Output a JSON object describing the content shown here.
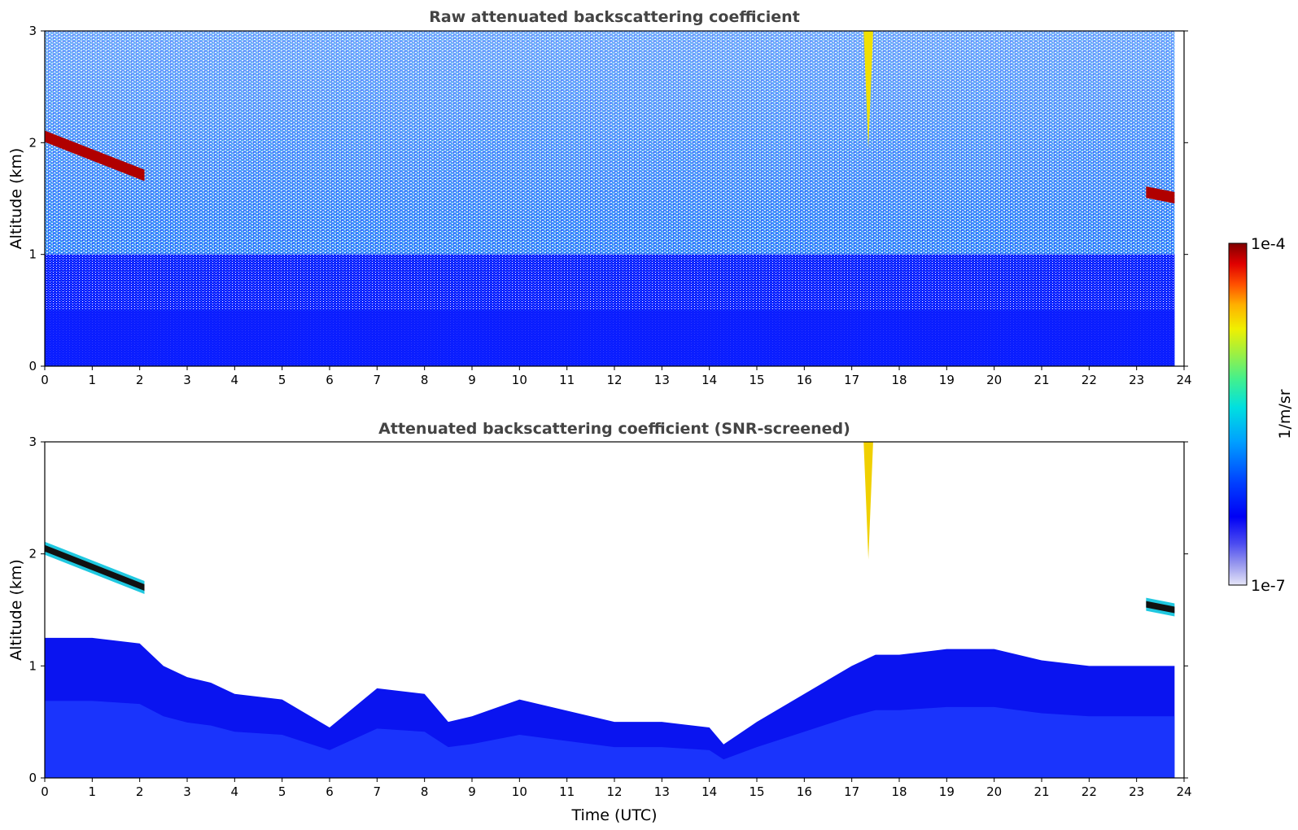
{
  "chart_data": [
    {
      "type": "heatmap",
      "title": "Raw attenuated backscattering coefficient",
      "xlabel": "",
      "ylabel": "Altitude (km)",
      "xlim": [
        0,
        24
      ],
      "ylim": [
        0,
        3
      ],
      "xticks": [
        "0",
        "1",
        "2",
        "3",
        "4",
        "5",
        "6",
        "7",
        "8",
        "9",
        "10",
        "11",
        "12",
        "13",
        "14",
        "15",
        "16",
        "17",
        "18",
        "19",
        "20",
        "21",
        "22",
        "23",
        "24"
      ],
      "yticks": [
        "0",
        "1",
        "2",
        "3"
      ],
      "data_extent_hours": [
        0,
        23.8
      ],
      "features": [
        {
          "kind": "cloud_layer",
          "t_start": 0,
          "t_end": 2.1,
          "alt_start": 2.05,
          "alt_end": 1.7
        },
        {
          "kind": "cloud_layer",
          "t_start": 23.2,
          "t_end": 23.8,
          "alt_start": 1.55,
          "alt_end": 1.5
        },
        {
          "kind": "cloud_column",
          "t_start": 17.25,
          "t_end": 17.45,
          "alt_bottom": 1.95,
          "alt_top": 3.0
        },
        {
          "kind": "aerosol_boundary_layer",
          "top_km": 0.5
        }
      ]
    },
    {
      "type": "heatmap",
      "title": "Attenuated backscattering coefficient (SNR-screened)",
      "xlabel": "Time (UTC)",
      "ylabel": "Altitude (km)",
      "xlim": [
        0,
        24
      ],
      "ylim": [
        0,
        3
      ],
      "xticks": [
        "0",
        "1",
        "2",
        "3",
        "4",
        "5",
        "6",
        "7",
        "8",
        "9",
        "10",
        "11",
        "12",
        "13",
        "14",
        "15",
        "16",
        "17",
        "18",
        "19",
        "20",
        "21",
        "22",
        "23",
        "24"
      ],
      "yticks": [
        "0",
        "1",
        "2",
        "3"
      ],
      "data_extent_hours": [
        0,
        23.8
      ],
      "screened_layer_top": {
        "t": [
          0,
          1,
          2,
          2.5,
          3,
          3.5,
          4,
          5,
          6,
          7,
          8,
          8.5,
          9,
          10,
          11,
          12,
          13,
          14,
          14.3,
          15,
          16,
          17,
          17.5,
          18,
          19,
          20,
          21,
          22,
          23,
          23.8
        ],
        "alt": [
          1.25,
          1.25,
          1.2,
          1.0,
          0.9,
          0.85,
          0.75,
          0.7,
          0.45,
          0.8,
          0.75,
          0.5,
          0.55,
          0.7,
          0.6,
          0.5,
          0.5,
          0.45,
          0.3,
          0.5,
          0.75,
          1.0,
          1.1,
          1.1,
          1.15,
          1.15,
          1.05,
          1.0,
          1.0,
          1.0
        ]
      }
    }
  ],
  "colorbar": {
    "label": "1/m/sr",
    "max_label": "1e-4",
    "min_label": "1e-7",
    "colors": [
      "#e6e6f8",
      "#9999ee",
      "#4d4df0",
      "#0000f5",
      "#0040ff",
      "#00a0ff",
      "#00e0e0",
      "#40f090",
      "#a0f040",
      "#f0f000",
      "#ffb000",
      "#ff5000",
      "#e00000",
      "#800000"
    ]
  }
}
